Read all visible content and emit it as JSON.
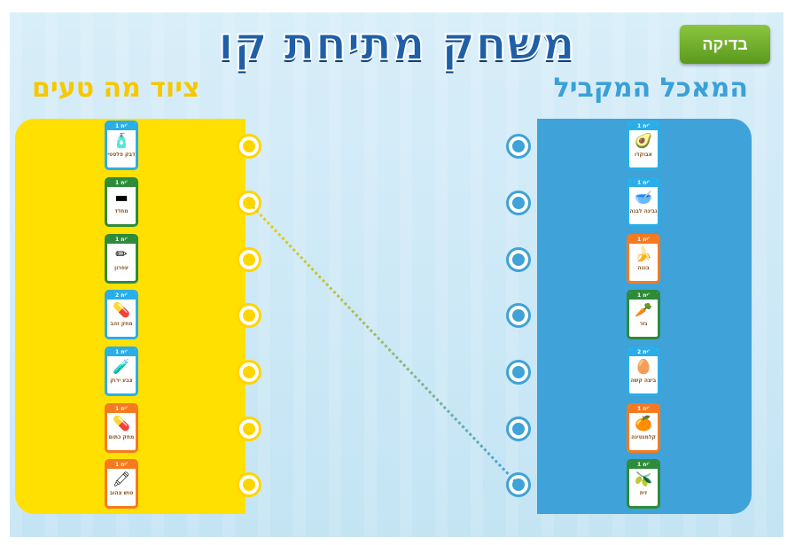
{
  "title": "משחק מתיחת קו",
  "check_button": "בדיקה",
  "left_header": "ציוד מה טעים",
  "right_header": "המאכל המקביל",
  "left_items": [
    {
      "name": "דבק פלסטי",
      "badge": "1 יח'",
      "color": "#2aaee8",
      "icon": "🧴"
    },
    {
      "name": "מחדד",
      "badge": "1 יח'",
      "color": "#2e8b3a",
      "icon": "▬"
    },
    {
      "name": "עפרון",
      "badge": "1 יח'",
      "color": "#2e8b3a",
      "icon": "✏"
    },
    {
      "name": "מחק זהב",
      "badge": "2 יח'",
      "color": "#2aaee8",
      "icon": "💊"
    },
    {
      "name": "צבע ירוק",
      "badge": "1 יח'",
      "color": "#2aaee8",
      "icon": "🧪"
    },
    {
      "name": "מחק כתום",
      "badge": "1 יח'",
      "color": "#f57a1f",
      "icon": "💊"
    },
    {
      "name": "טוש צהוב",
      "badge": "1 יח'",
      "color": "#f57a1f",
      "icon": "🖍"
    }
  ],
  "right_items": [
    {
      "name": "אבוקדו",
      "badge": "1 יח'",
      "color": "#2aaee8",
      "icon": "🥑"
    },
    {
      "name": "גבינה לבנה",
      "badge": "1 יח'",
      "color": "#2aaee8",
      "icon": "🥣"
    },
    {
      "name": "בננה",
      "badge": "1 יח'",
      "color": "#f57a1f",
      "icon": "🍌"
    },
    {
      "name": "גזר",
      "badge": "1 יח'",
      "color": "#2e8b3a",
      "icon": "🥕"
    },
    {
      "name": "ביצה קשה",
      "badge": "2 יח'",
      "color": "#2aaee8",
      "icon": "🥚"
    },
    {
      "name": "קלמנטינה",
      "badge": "1 יח'",
      "color": "#f57a1f",
      "icon": "🍊"
    },
    {
      "name": "זית",
      "badge": "1 יח'",
      "color": "#2e8b3a",
      "icon": "🫒"
    }
  ],
  "connections": [
    {
      "left": 2,
      "right": 7
    }
  ]
}
